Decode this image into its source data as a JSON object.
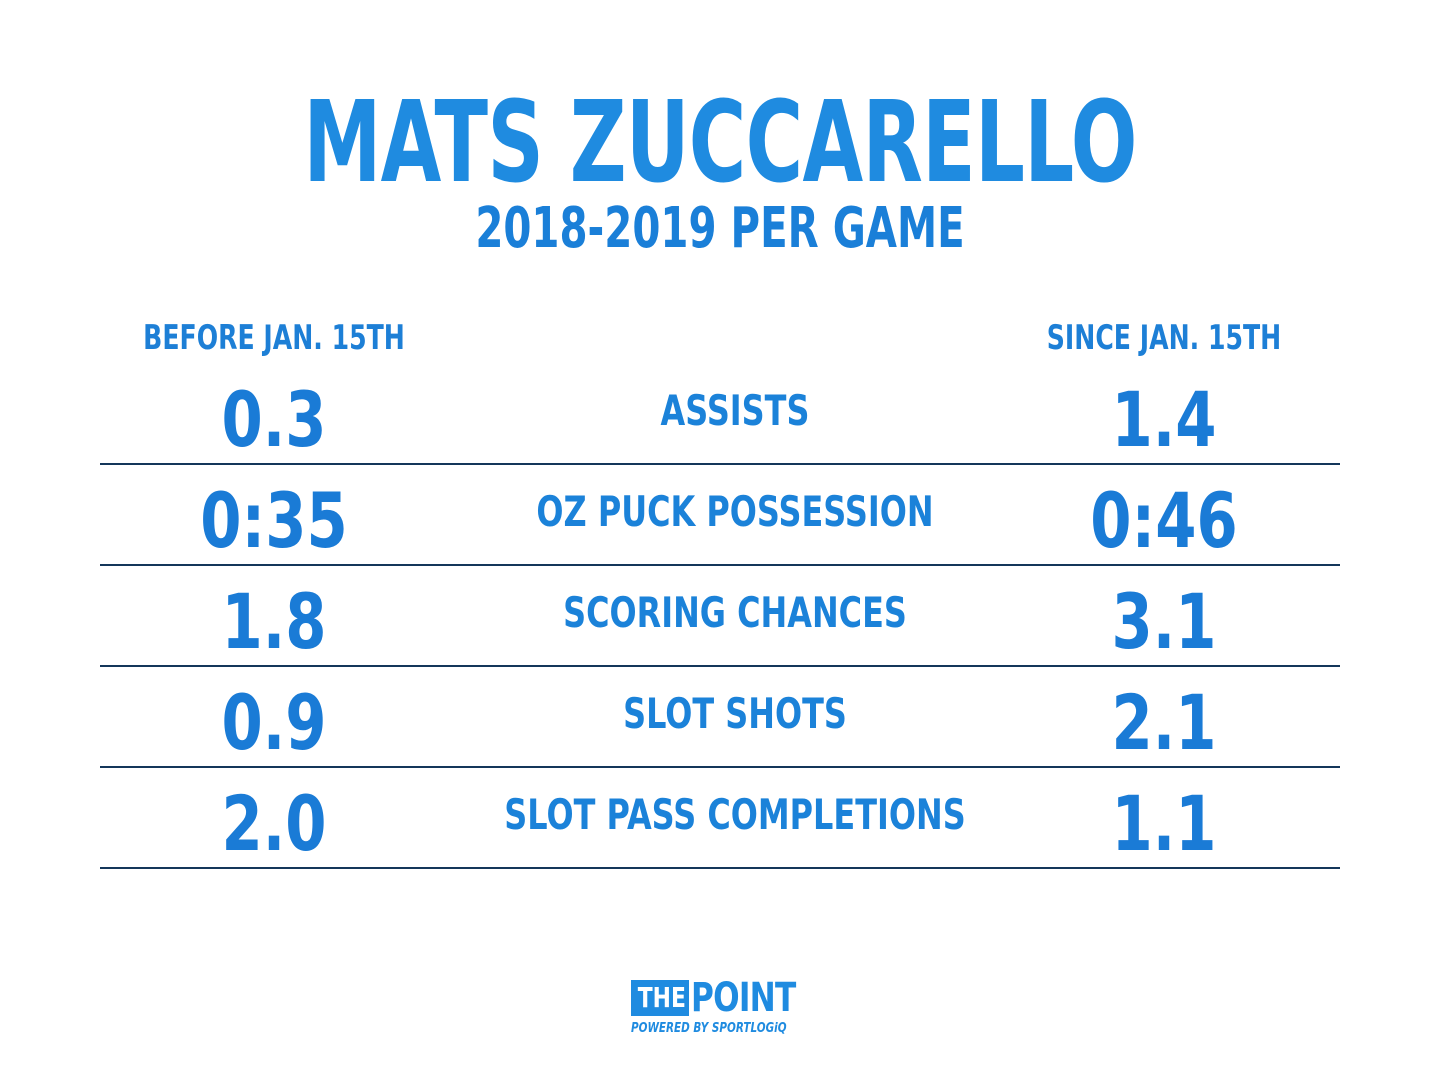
{
  "header": {
    "title": "MATS ZUCCARELLO",
    "subtitle": "2018-2019 PER GAME"
  },
  "columns": {
    "left": "BEFORE JAN. 15TH",
    "right": "SINCE JAN. 15TH"
  },
  "rows": [
    {
      "left": "0.3",
      "label": "ASSISTS",
      "right": "1.4"
    },
    {
      "left": "0:35",
      "label": "OZ PUCK POSSESSION",
      "right": "0:46"
    },
    {
      "left": "1.8",
      "label": "SCORING CHANCES",
      "right": "3.1"
    },
    {
      "left": "0.9",
      "label": "SLOT SHOTS",
      "right": "2.1"
    },
    {
      "left": "2.0",
      "label": "SLOT PASS COMPLETIONS",
      "right": "1.1"
    }
  ],
  "logo": {
    "the": "THE",
    "point": "POINT",
    "powered": "POWERED BY SPORTLOGiQ"
  },
  "colors": {
    "accent": "#1f8be0",
    "divider": "#14365a",
    "background": "#ffffff"
  }
}
